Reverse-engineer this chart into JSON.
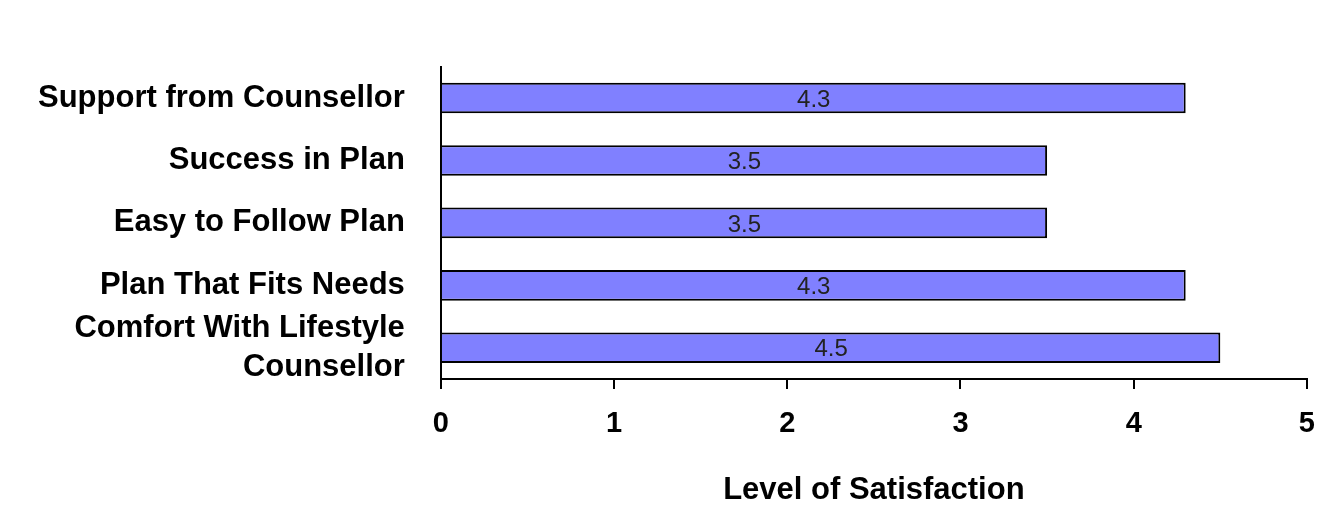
{
  "chart_data": {
    "type": "bar",
    "orientation": "horizontal",
    "xlabel": "Level of Satisfaction",
    "categories": [
      "Support from Counsellor",
      "Success in Plan",
      "Easy to Follow Plan",
      "Plan That Fits Needs",
      "Comfort With Lifestyle Counsellor"
    ],
    "values": [
      4.3,
      3.5,
      3.5,
      4.3,
      4.5
    ],
    "color": "#8080ff",
    "xlim": [
      0,
      5
    ],
    "xticks": [
      0,
      1,
      2,
      3,
      4,
      5
    ],
    "grid": false,
    "legend": false,
    "data_labels": true
  }
}
